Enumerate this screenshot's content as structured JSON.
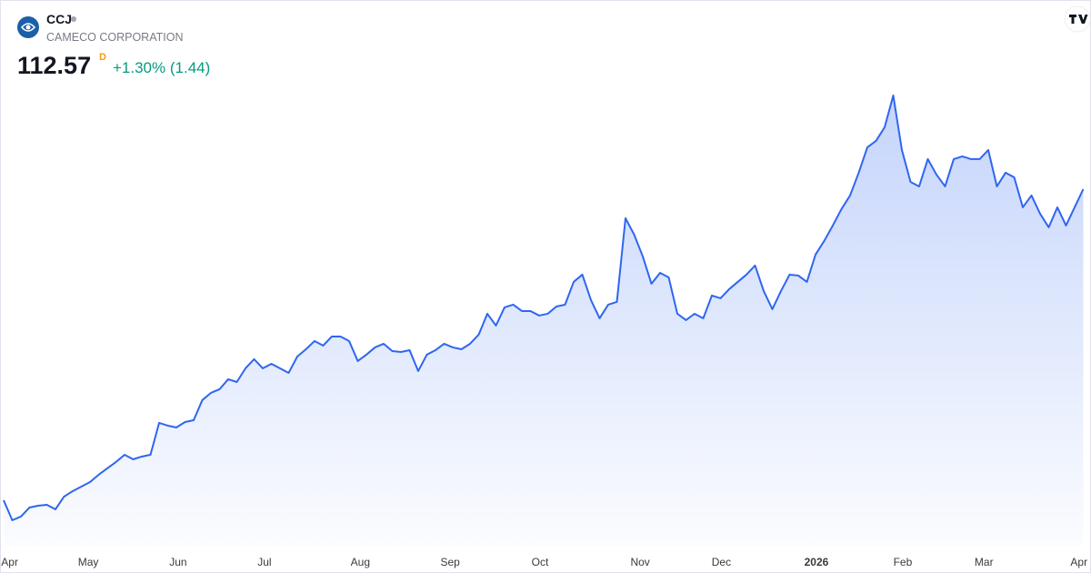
{
  "header": {
    "symbol": "CCJ",
    "name": "CAMECO CORPORATION",
    "price": "112.57",
    "interval": "D",
    "change": "+1.30% (1.44)"
  },
  "chart_data": {
    "type": "area",
    "color": "#2f66f0",
    "values": [
      40.27,
      35.62,
      36.47,
      38.58,
      39.0,
      39.21,
      38.16,
      41.12,
      42.39,
      43.44,
      44.5,
      46.19,
      47.67,
      49.15,
      50.84,
      49.78,
      50.42,
      50.84,
      58.24,
      57.61,
      57.18,
      58.45,
      58.87,
      63.53,
      65.22,
      66.06,
      68.39,
      67.75,
      70.92,
      73.04,
      70.92,
      71.98,
      70.92,
      69.87,
      73.67,
      75.36,
      77.27,
      76.21,
      78.32,
      78.32,
      77.27,
      72.62,
      74.1,
      75.79,
      76.63,
      74.94,
      74.73,
      75.15,
      70.29,
      74.1,
      75.15,
      76.63,
      75.79,
      75.36,
      76.63,
      78.75,
      83.61,
      80.86,
      85.09,
      85.72,
      84.24,
      84.24,
      83.19,
      83.61,
      85.3,
      85.72,
      91.01,
      92.7,
      86.78,
      82.55,
      85.72,
      86.36,
      105.81,
      102.0,
      96.93,
      90.58,
      93.12,
      92.06,
      83.61,
      82.13,
      83.61,
      82.55,
      87.84,
      87.2,
      89.32,
      91.01,
      92.7,
      94.81,
      88.89,
      84.67,
      88.89,
      92.7,
      92.49,
      91.01,
      97.35,
      100.52,
      104.11,
      107.92,
      111.09,
      116.38,
      122.29,
      123.77,
      126.95,
      134.34,
      121.66,
      114.26,
      113.2,
      119.55,
      115.95,
      113.2,
      119.55,
      120.18,
      119.55,
      119.55,
      121.66,
      113.2,
      116.38,
      115.32,
      108.34,
      111.09,
      106.86,
      103.69,
      108.34,
      104.11,
      108.34,
      112.57
    ],
    "xlim": [
      0,
      125
    ],
    "xticks": [
      {
        "value": 0.7,
        "label": "Apr"
      },
      {
        "value": 9.8,
        "label": "May"
      },
      {
        "value": 20.2,
        "label": "Jun"
      },
      {
        "value": 30.2,
        "label": "Jul"
      },
      {
        "value": 41.3,
        "label": "Aug"
      },
      {
        "value": 51.7,
        "label": "Sep"
      },
      {
        "value": 62.1,
        "label": "Oct"
      },
      {
        "value": 73.7,
        "label": "Nov"
      },
      {
        "value": 83.1,
        "label": "Dec"
      },
      {
        "value": 94.1,
        "label": "2026"
      },
      {
        "value": 104.1,
        "label": "Feb"
      },
      {
        "value": 113.5,
        "label": "Mar"
      },
      {
        "value": 124.5,
        "label": "Apr"
      }
    ],
    "ylim": [
      29.7,
      137.5
    ]
  }
}
